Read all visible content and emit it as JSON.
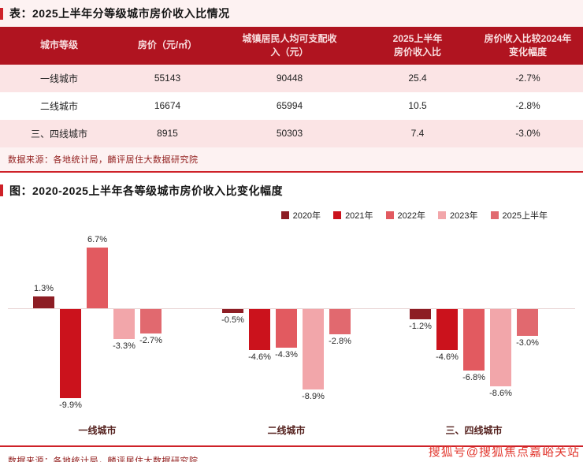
{
  "page": {
    "accent_color": "#CE2128",
    "table_section": {
      "title": "表：2025上半年分等级城市房价收入比情况",
      "columns": [
        "城市等级",
        "房价（元/㎡）",
        "城镇居民人均可支配收\n入（元）",
        "2025上半年\n房价收入比",
        "房价收入比较2024年\n变化幅度"
      ],
      "rows": [
        {
          "tier": "一线城市",
          "price": "55143",
          "income": "90448",
          "ratio": "25.4",
          "change": "-2.7%"
        },
        {
          "tier": "二线城市",
          "price": "16674",
          "income": "65994",
          "ratio": "10.5",
          "change": "-2.8%"
        },
        {
          "tier": "三、四线城市",
          "price": "8915",
          "income": "50303",
          "ratio": "7.4",
          "change": "-3.0%"
        }
      ],
      "source": "数据来源：各地统计局，麟评居住大数据研究院"
    },
    "chart_section": {
      "title": "图：2020-2025上半年各等级城市房价收入比变化幅度",
      "source": "数据来源：各地统计局，麟评居住大数据研究院"
    },
    "watermark": "搜狐号@搜狐焦点嘉峪关站"
  },
  "chart_data": {
    "type": "bar",
    "title": "2020-2025上半年各等级城市房价收入比变化幅度",
    "categories": [
      "一线城市",
      "二线城市",
      "三、四线城市"
    ],
    "series": [
      {
        "name": "2020年",
        "color": "#8D1D24",
        "values": [
          1.3,
          -0.5,
          -1.2
        ]
      },
      {
        "name": "2021年",
        "color": "#CB121C",
        "values": [
          -9.9,
          -4.6,
          -4.6
        ]
      },
      {
        "name": "2022年",
        "color": "#E25A60",
        "values": [
          6.7,
          -4.3,
          -6.8
        ]
      },
      {
        "name": "2023年",
        "color": "#F2A6AA",
        "values": [
          -3.3,
          -8.9,
          -8.6
        ]
      },
      {
        "name": "2025上半年",
        "color": "#E1696F",
        "values": [
          -2.7,
          -2.8,
          -3.0
        ]
      }
    ],
    "value_suffix": "%",
    "xlabel": "",
    "ylabel": "",
    "ylim": [
      -11,
      8
    ],
    "grid": false,
    "legend_position": "top-right"
  }
}
